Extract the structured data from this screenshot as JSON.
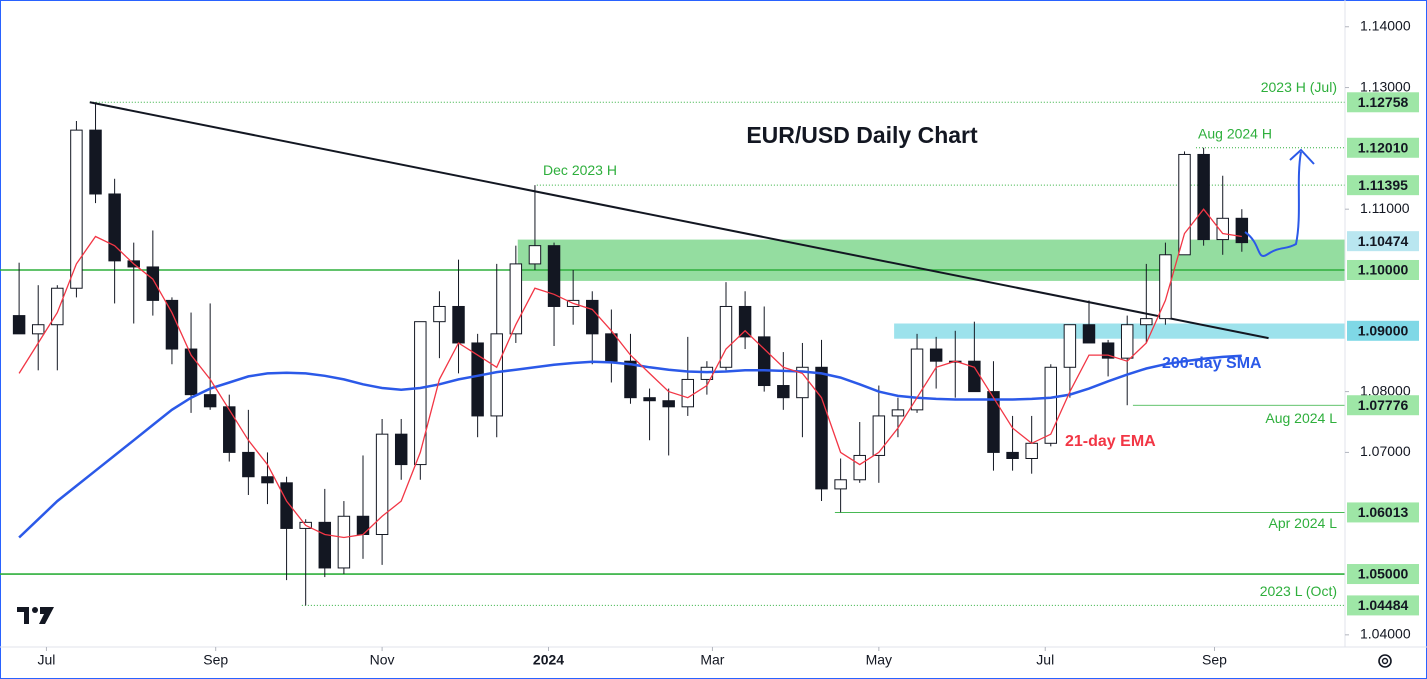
{
  "chart_data": {
    "type": "candlestick",
    "title": "EUR/USD Daily Chart",
    "categories": [
      null,
      null,
      null,
      null,
      null,
      null,
      null,
      null,
      null,
      null,
      null,
      null,
      null,
      null,
      null,
      null,
      null,
      null,
      null,
      null,
      null,
      null,
      null,
      null,
      null,
      null,
      null,
      null,
      null,
      null,
      null,
      null,
      null,
      null,
      null,
      null,
      null,
      null,
      null,
      null,
      null,
      null,
      null,
      null,
      null,
      null,
      null,
      null,
      null,
      null,
      null,
      null,
      null,
      null,
      null,
      null,
      null,
      null,
      null,
      null,
      null,
      null,
      null,
      null,
      null
    ],
    "open": [
      1.0925,
      1.0895,
      1.091,
      1.097,
      1.123,
      1.1125,
      1.1015,
      1.1005,
      1.095,
      1.087,
      1.0795,
      1.0775,
      1.07,
      1.066,
      1.065,
      1.0575,
      1.0585,
      1.051,
      1.0595,
      1.0565,
      1.073,
      1.068,
      1.0915,
      1.094,
      1.088,
      1.076,
      1.0895,
      1.101,
      1.104,
      1.094,
      1.095,
      1.0895,
      1.085,
      1.079,
      1.0785,
      1.0775,
      1.082,
      1.084,
      1.094,
      1.089,
      1.081,
      1.079,
      1.084,
      1.064,
      1.0655,
      1.0695,
      1.076,
      1.077,
      1.087,
      1.085,
      1.085,
      1.08,
      1.07,
      1.069,
      1.0715,
      1.084,
      1.091,
      1.088,
      1.0855,
      1.091,
      1.092,
      1.1025,
      1.119,
      1.105,
      1.1085
    ],
    "high": [
      1.1012,
      1.0975,
      1.0975,
      1.1245,
      1.12758,
      1.115,
      1.1045,
      1.1065,
      1.0955,
      1.093,
      1.0945,
      1.0795,
      1.077,
      1.07,
      1.066,
      1.059,
      1.064,
      1.062,
      1.0695,
      1.0755,
      1.0755,
      1.0915,
      1.0965,
      1.1017,
      1.0895,
      1.101,
      1.104,
      1.11395,
      1.1045,
      1.1,
      1.0965,
      1.0935,
      1.0895,
      1.0805,
      1.0805,
      1.089,
      1.085,
      1.098,
      1.0965,
      1.094,
      1.0865,
      1.088,
      1.0885,
      1.069,
      1.075,
      1.081,
      1.079,
      1.0895,
      1.089,
      1.09,
      1.0915,
      1.085,
      1.076,
      1.076,
      1.0845,
      1.0905,
      1.095,
      1.0885,
      1.0925,
      1.101,
      1.1045,
      1.1195,
      1.1201,
      1.1155,
      1.11
    ],
    "low": [
      1.0895,
      1.0835,
      1.0835,
      1.0955,
      1.111,
      1.0945,
      1.0912,
      1.0925,
      1.0845,
      1.0765,
      1.077,
      1.0685,
      1.063,
      1.0615,
      1.049,
      1.04484,
      1.0495,
      1.05,
      1.0525,
      1.0515,
      1.0655,
      1.0655,
      1.0855,
      1.083,
      1.0725,
      1.0725,
      1.088,
      1.1,
      1.0875,
      1.091,
      1.0845,
      1.0815,
      1.078,
      1.072,
      1.0695,
      1.076,
      1.0795,
      1.0835,
      1.087,
      1.08,
      1.077,
      1.0725,
      1.062,
      1.06013,
      1.065,
      1.065,
      1.0725,
      1.0765,
      1.0805,
      1.079,
      1.08,
      1.067,
      1.067,
      1.0665,
      1.071,
      1.079,
      1.088,
      1.0825,
      1.07776,
      1.088,
      1.091,
      1.1025,
      1.104,
      1.1025,
      1.103
    ],
    "close": [
      1.0895,
      1.091,
      1.097,
      1.123,
      1.1125,
      1.1015,
      1.1005,
      1.095,
      1.087,
      1.0795,
      1.0775,
      1.07,
      1.066,
      1.065,
      1.0575,
      1.0585,
      1.051,
      1.0595,
      1.0565,
      1.073,
      1.068,
      1.0915,
      1.094,
      1.088,
      1.076,
      1.0895,
      1.101,
      1.104,
      1.094,
      1.095,
      1.0895,
      1.085,
      1.079,
      1.0785,
      1.0775,
      1.082,
      1.084,
      1.094,
      1.089,
      1.081,
      1.079,
      1.084,
      1.064,
      1.0655,
      1.0695,
      1.076,
      1.077,
      1.087,
      1.085,
      1.085,
      1.08,
      1.07,
      1.069,
      1.0715,
      1.084,
      1.091,
      1.088,
      1.0855,
      1.091,
      1.092,
      1.1025,
      1.119,
      1.105,
      1.1085,
      1.1045
    ],
    "up_color": "#ffffff",
    "down_color": "#131722",
    "lines": [
      {
        "name": "200-day SMA",
        "color": "#2b59e8",
        "values": [
          1.056,
          1.059,
          1.062,
          1.0645,
          1.067,
          1.0695,
          1.072,
          1.0745,
          1.077,
          1.079,
          1.0805,
          1.0815,
          1.0825,
          1.083,
          1.0831,
          1.083,
          1.0826,
          1.082,
          1.0812,
          1.0806,
          1.0803,
          1.0806,
          1.0812,
          1.082,
          1.0826,
          1.0832,
          1.0836,
          1.084,
          1.0844,
          1.0847,
          1.0849,
          1.0848,
          1.0845,
          1.084,
          1.0836,
          1.0833,
          1.0832,
          1.0833,
          1.0835,
          1.0835,
          1.0834,
          1.0833,
          1.083,
          1.0823,
          1.0812,
          1.08,
          1.0793,
          1.079,
          1.0788,
          1.0787,
          1.0787,
          1.0787,
          1.0787,
          1.0788,
          1.079,
          1.0795,
          1.0805,
          1.0817,
          1.0828,
          1.0838,
          1.0845,
          1.085,
          1.0854,
          1.0857,
          1.0859
        ]
      },
      {
        "name": "21-day EMA",
        "color": "#f23645",
        "values": [
          1.083,
          1.088,
          1.093,
          1.101,
          1.1055,
          1.104,
          1.101,
          1.0985,
          1.093,
          1.086,
          1.082,
          1.077,
          1.072,
          1.068,
          1.062,
          1.058,
          1.0565,
          1.056,
          1.0565,
          1.0595,
          1.062,
          1.07,
          1.082,
          1.088,
          1.086,
          1.084,
          1.091,
          1.097,
          1.096,
          1.0945,
          1.0935,
          1.09,
          1.086,
          1.083,
          1.08,
          1.079,
          1.081,
          1.087,
          1.09,
          1.087,
          1.084,
          1.083,
          1.079,
          1.07,
          1.068,
          1.07,
          1.074,
          1.079,
          1.084,
          1.085,
          1.084,
          1.079,
          1.074,
          1.0715,
          1.073,
          1.08,
          1.086,
          1.086,
          1.085,
          1.088,
          1.095,
          1.106,
          1.11,
          1.106,
          1.1055
        ]
      }
    ],
    "trendline": {
      "color": "#131722",
      "x": [
        3.7,
        65.4
      ],
      "y": [
        1.12758,
        1.0888
      ]
    },
    "zones": [
      {
        "from": 1.0982,
        "to": 1.105,
        "start": 26.1,
        "color": "#4cc760"
      },
      {
        "from": 1.0887,
        "to": 1.0912,
        "start": 45.8,
        "color": "#5bcfe0"
      }
    ],
    "level_color": "#2eaf3c",
    "levels": [
      {
        "value": 1.12758,
        "label": "1.12758",
        "note": "2023 H (Jul)",
        "from": 3.7,
        "style": "dotted",
        "box_color": "#9ee6a6"
      },
      {
        "value": 1.1201,
        "label": "1.12010",
        "note": "Aug 2024 H",
        "from": 61.6,
        "style": "dotted",
        "box_color": "#9ee6a6"
      },
      {
        "value": 1.11395,
        "label": "1.11395",
        "note": "Dec 2023 H",
        "from": 27.1,
        "style": "dotted",
        "box_color": "#9ee6a6"
      },
      {
        "value": 1.10474,
        "label": "1.10474",
        "style": "none",
        "box_color": "#b9e6f0"
      },
      {
        "value": 1.1,
        "label": "1.10000",
        "from": -1,
        "style": "solid",
        "box_color": "#9ee6a6"
      },
      {
        "value": 1.09,
        "label": "1.09000",
        "style": "none",
        "box_color": "#7fd8e6"
      },
      {
        "value": 1.07776,
        "label": "1.07776",
        "note": "Aug 2024 L",
        "from": 58.3,
        "style": "thin",
        "box_color": "#9ee6a6"
      },
      {
        "value": 1.06013,
        "label": "1.06013",
        "note": "Apr 2024 L",
        "from": 42.7,
        "style": "thin",
        "box_color": "#9ee6a6"
      },
      {
        "value": 1.05,
        "label": "1.05000",
        "from": -1,
        "style": "solid",
        "box_color": "#9ee6a6"
      },
      {
        "value": 1.04484,
        "label": "1.04484",
        "note": "2023 L (Oct)",
        "from": 14.8,
        "style": "dotted",
        "box_color": "#9ee6a6"
      }
    ],
    "xlim": [
      -1,
      69.4
    ],
    "ylim": [
      1.038,
      1.1444
    ],
    "xticks": [
      {
        "value": 1.43,
        "label": "Jul"
      },
      {
        "value": 10.29,
        "label": "Sep"
      },
      {
        "value": 19,
        "label": "Nov"
      },
      {
        "value": 27.71,
        "label": "2024"
      },
      {
        "value": 36.29,
        "label": "Mar"
      },
      {
        "value": 45,
        "label": "May"
      },
      {
        "value": 53.71,
        "label": "Jul"
      },
      {
        "value": 62.57,
        "label": "Sep"
      }
    ],
    "yticks": [
      {
        "value": 1.14,
        "label": "1.14000"
      },
      {
        "value": 1.13,
        "label": "1.13000"
      },
      {
        "value": 1.11,
        "label": "1.11000"
      },
      {
        "value": 1.08,
        "label": "1.08000"
      },
      {
        "value": 1.07,
        "label": "1.07000"
      },
      {
        "value": 1.04,
        "label": "1.04000"
      }
    ]
  }
}
